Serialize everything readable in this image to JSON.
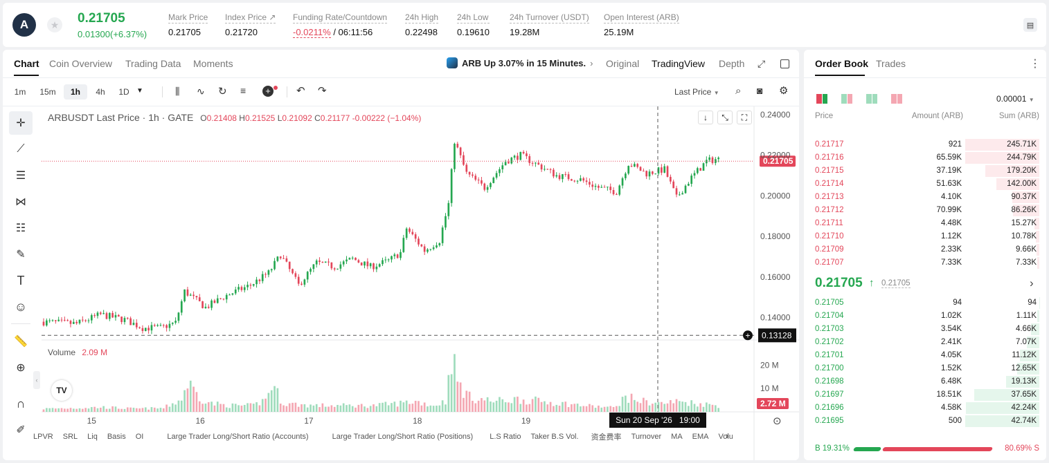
{
  "header": {
    "logo_glyph": "A",
    "last_price": "0.21705",
    "change": "0.01300(+6.37%)",
    "stats": [
      {
        "label": "Mark Price",
        "value": "0.21705"
      },
      {
        "label": "Index Price ↗",
        "value": "0.21720"
      },
      {
        "label": "Funding Rate/Countdown",
        "value": "-0.0211%",
        "value2": "/ 06:11:56"
      },
      {
        "label": "24h High",
        "value": "0.22498"
      },
      {
        "label": "24h Low",
        "value": "0.19610"
      },
      {
        "label": "24h Turnover (USDT)",
        "value": "19.28M"
      },
      {
        "label": "Open Interest (ARB)",
        "value": "25.19M"
      }
    ]
  },
  "chart_tabs": [
    "Chart",
    "Coin Overview",
    "Trading Data",
    "Moments"
  ],
  "news": {
    "icon": "arbitrum-icon",
    "text": "ARB Up 3.07% in 15 Minutes."
  },
  "view_tabs": [
    "Original",
    "TradingView",
    "Depth"
  ],
  "intervals": [
    "1m",
    "15m",
    "1h",
    "4h",
    "1D"
  ],
  "active_interval": "1h",
  "price_type": "Last Price",
  "legend": {
    "symbol": "ARBUSDT Last Price · 1h · GATE",
    "o_label": "O",
    "o": "0.21408",
    "h_label": "H",
    "h": "0.21525",
    "l_label": "L",
    "l": "0.21092",
    "c_label": "C",
    "c": "0.21177",
    "change": "-0.00222 (−1.04%)"
  },
  "volume_legend": {
    "label": "Volume",
    "value": "2.09 M"
  },
  "indicators": [
    "LPVR",
    "SRL",
    "Liq",
    "Basis",
    "OI",
    "Large Trader Long/Short Ratio (Accounts)",
    "Large Trader Long/Short Ratio (Positions)",
    "L.S Ratio",
    "Taker B.S Vol.",
    "资金费率",
    "Turnover",
    "MA",
    "EMA",
    "Volu"
  ],
  "crosshair": {
    "date": "Sun 20 Sep '26",
    "time": "19:00",
    "price": "0.13128"
  },
  "tv_logo": "TV",
  "chart_data": {
    "type": "candlestick",
    "price_axis": {
      "ticks": [
        "0.24000",
        "0.22000",
        "0.20000",
        "0.18000",
        "0.16000",
        "0.14000"
      ],
      "range": [
        0.129,
        0.244
      ]
    },
    "time_axis": {
      "ticks": [
        "15",
        "16",
        "17",
        "18",
        "19",
        "20"
      ]
    },
    "volume_axis": {
      "ticks": [
        "20 M",
        "10 M"
      ],
      "range": [
        0,
        29
      ],
      "current_label": "2.72 M"
    },
    "last_price_label": "0.21705",
    "last_price_value": 0.21705,
    "crosshair_price": 0.13128,
    "anchors": [
      [
        0,
        0.138
      ],
      [
        12,
        0.137
      ],
      [
        20,
        0.1415
      ],
      [
        28,
        0.139
      ],
      [
        34,
        0.135
      ],
      [
        40,
        0.135
      ],
      [
        45,
        0.1375
      ],
      [
        48,
        0.153
      ],
      [
        55,
        0.145
      ],
      [
        62,
        0.151
      ],
      [
        70,
        0.156
      ],
      [
        76,
        0.162
      ],
      [
        80,
        0.171
      ],
      [
        86,
        0.156
      ],
      [
        92,
        0.167
      ],
      [
        98,
        0.165
      ],
      [
        104,
        0.169
      ],
      [
        110,
        0.165
      ],
      [
        116,
        0.168
      ],
      [
        120,
        0.172
      ],
      [
        122,
        0.184
      ],
      [
        128,
        0.173
      ],
      [
        133,
        0.178
      ],
      [
        136,
        0.196
      ],
      [
        138,
        0.227
      ],
      [
        142,
        0.211
      ],
      [
        148,
        0.204
      ],
      [
        155,
        0.217
      ],
      [
        160,
        0.22
      ],
      [
        166,
        0.215
      ],
      [
        172,
        0.21
      ],
      [
        180,
        0.208
      ],
      [
        186,
        0.204
      ],
      [
        192,
        0.202
      ],
      [
        196,
        0.216
      ],
      [
        202,
        0.211
      ],
      [
        208,
        0.213
      ],
      [
        212,
        0.199
      ],
      [
        217,
        0.209
      ],
      [
        222,
        0.217
      ],
      [
        225,
        0.218
      ]
    ],
    "volume_anchors": [
      [
        0,
        1.5
      ],
      [
        20,
        2.2
      ],
      [
        30,
        1.5
      ],
      [
        40,
        1.8
      ],
      [
        46,
        6
      ],
      [
        48,
        14
      ],
      [
        52,
        7
      ],
      [
        56,
        4
      ],
      [
        62,
        3
      ],
      [
        70,
        3
      ],
      [
        74,
        6
      ],
      [
        76,
        13
      ],
      [
        80,
        4
      ],
      [
        90,
        3
      ],
      [
        100,
        3
      ],
      [
        110,
        3
      ],
      [
        118,
        4
      ],
      [
        124,
        5
      ],
      [
        130,
        3
      ],
      [
        134,
        5
      ],
      [
        136,
        28
      ],
      [
        138,
        14
      ],
      [
        142,
        7
      ],
      [
        150,
        5
      ],
      [
        158,
        6
      ],
      [
        166,
        5
      ],
      [
        180,
        3
      ],
      [
        190,
        2
      ],
      [
        194,
        7
      ],
      [
        200,
        5
      ],
      [
        206,
        4
      ],
      [
        212,
        5
      ],
      [
        218,
        4
      ],
      [
        225,
        3
      ]
    ]
  },
  "orderbook": {
    "tabs": [
      "Order Book",
      "Trades"
    ],
    "precision": "0.00001",
    "headers": [
      "Price",
      "Amount (ARB)",
      "Sum (ARB)"
    ],
    "asks": [
      {
        "price": "0.21717",
        "amount": "921",
        "sum": "245.71K",
        "depth": 1.0
      },
      {
        "price": "0.21716",
        "amount": "65.59K",
        "sum": "244.79K",
        "depth": 0.996
      },
      {
        "price": "0.21715",
        "amount": "37.19K",
        "sum": "179.20K",
        "depth": 0.729
      },
      {
        "price": "0.21714",
        "amount": "51.63K",
        "sum": "142.00K",
        "depth": 0.578
      },
      {
        "price": "0.21713",
        "amount": "4.10K",
        "sum": "90.37K",
        "depth": 0.368
      },
      {
        "price": "0.21712",
        "amount": "70.99K",
        "sum": "86.26K",
        "depth": 0.351
      },
      {
        "price": "0.21711",
        "amount": "4.48K",
        "sum": "15.27K",
        "depth": 0.062
      },
      {
        "price": "0.21710",
        "amount": "1.12K",
        "sum": "10.78K",
        "depth": 0.044
      },
      {
        "price": "0.21709",
        "amount": "2.33K",
        "sum": "9.66K",
        "depth": 0.039
      },
      {
        "price": "0.21707",
        "amount": "7.33K",
        "sum": "7.33K",
        "depth": 0.03
      }
    ],
    "mid_price": "0.21705",
    "mid_arrow": "↑",
    "mid_mark": "0.21705",
    "bids": [
      {
        "price": "0.21705",
        "amount": "94",
        "sum": "94",
        "depth": 0.002
      },
      {
        "price": "0.21704",
        "amount": "1.02K",
        "sum": "1.11K",
        "depth": 0.026
      },
      {
        "price": "0.21703",
        "amount": "3.54K",
        "sum": "4.66K",
        "depth": 0.109
      },
      {
        "price": "0.21702",
        "amount": "2.41K",
        "sum": "7.07K",
        "depth": 0.165
      },
      {
        "price": "0.21701",
        "amount": "4.05K",
        "sum": "11.12K",
        "depth": 0.26
      },
      {
        "price": "0.21700",
        "amount": "1.52K",
        "sum": "12.65K",
        "depth": 0.296
      },
      {
        "price": "0.21698",
        "amount": "6.48K",
        "sum": "19.13K",
        "depth": 0.448
      },
      {
        "price": "0.21697",
        "amount": "18.51K",
        "sum": "37.65K",
        "depth": 0.881
      },
      {
        "price": "0.21696",
        "amount": "4.58K",
        "sum": "42.24K",
        "depth": 0.988
      },
      {
        "price": "0.21695",
        "amount": "500",
        "sum": "42.74K",
        "depth": 1.0
      }
    ],
    "ratio": {
      "buy_label": "B 19.31%",
      "sell_label": "80.69% S",
      "buy": 19.31
    }
  },
  "colors": {
    "up": "#25a750",
    "down": "#e3465a",
    "up_vol": "#9fdcbc",
    "down_vol": "#f4a7b2"
  }
}
